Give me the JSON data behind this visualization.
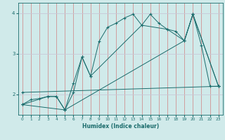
{
  "xlabel": "Humidex (Indice chaleur)",
  "xlim": [
    -0.5,
    23.5
  ],
  "ylim": [
    1.5,
    4.25
  ],
  "yticks": [
    2,
    3,
    4
  ],
  "xticks": [
    0,
    1,
    2,
    3,
    4,
    5,
    6,
    7,
    8,
    9,
    10,
    11,
    12,
    13,
    14,
    15,
    16,
    17,
    18,
    19,
    20,
    21,
    22,
    23
  ],
  "bg_color": "#d0eaea",
  "line_color": "#1a6b6b",
  "grid_color_v": "#d08080",
  "grid_color_h": "#c8c8d8",
  "line1_x": [
    0,
    1,
    2,
    3,
    4,
    5,
    6,
    7,
    8,
    9,
    10,
    11,
    12,
    13,
    14,
    15,
    16,
    17,
    18,
    19,
    20,
    21,
    22,
    23
  ],
  "line1_y": [
    1.75,
    1.87,
    1.9,
    1.95,
    1.95,
    1.62,
    2.28,
    2.92,
    2.45,
    3.3,
    3.65,
    3.75,
    3.88,
    3.97,
    3.7,
    3.97,
    3.75,
    3.6,
    3.55,
    3.32,
    3.97,
    3.2,
    2.2,
    2.2
  ],
  "line2_x": [
    0,
    3,
    4,
    5,
    6,
    7,
    8,
    14,
    17,
    19,
    20,
    23
  ],
  "line2_y": [
    1.75,
    1.95,
    1.95,
    1.62,
    2.05,
    2.92,
    2.45,
    3.7,
    3.6,
    3.32,
    3.97,
    2.2
  ],
  "line3_x": [
    0,
    5,
    19,
    20,
    23
  ],
  "line3_y": [
    1.75,
    1.62,
    3.32,
    3.97,
    2.2
  ],
  "line4_x": [
    0,
    23
  ],
  "line4_y": [
    2.05,
    2.2
  ]
}
